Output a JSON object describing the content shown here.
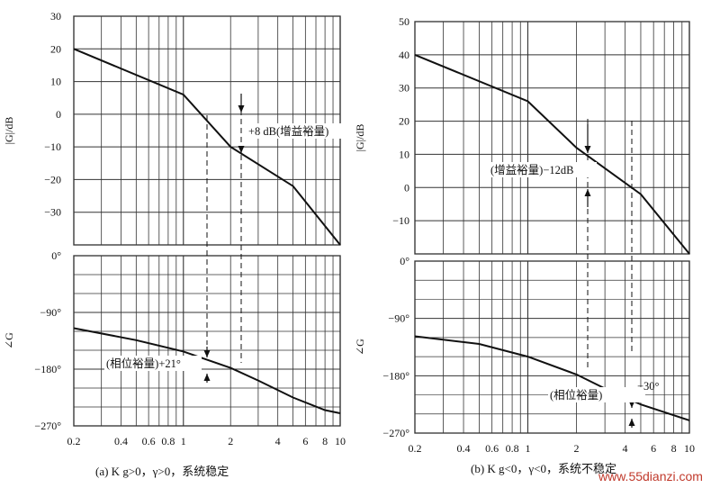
{
  "figures": [
    {
      "caption": "(a)  K g>0，γ>0，系统稳定",
      "magnitude_ylabel": "|G|/dB",
      "phase_ylabel": "∠G",
      "magnitude_ticks": [
        "30",
        "20",
        "10",
        "0",
        "−10",
        "−20",
        "−30"
      ],
      "phase_ticks": [
        "0°",
        "−90°",
        "−180°",
        "−270°"
      ],
      "x_ticks": [
        "0.2",
        "0.4",
        "0.6",
        "0.8",
        "1",
        "2",
        "4",
        "6",
        "8",
        "10"
      ],
      "gain_margin_label": "+8 dB(增益裕量)",
      "phase_margin_label": "(相位裕量)+21°"
    },
    {
      "caption": "(b)  K g<0，γ<0，系统不稳定",
      "magnitude_ylabel": "|G|/dB",
      "phase_ylabel": "∠G",
      "magnitude_ticks": [
        "50",
        "40",
        "30",
        "20",
        "10",
        "0",
        "−10"
      ],
      "phase_ticks": [
        "0°",
        "−90°",
        "−180°",
        "−270°"
      ],
      "x_ticks": [
        "0.2",
        "0.4",
        "0.6",
        "0.8",
        "1",
        "2",
        "4",
        "6",
        "8",
        "10"
      ],
      "gain_margin_label": "(增益裕量)−12dB",
      "phase_margin_label": "(相位裕量)",
      "phase_margin_value": "−30°"
    }
  ],
  "watermark": "www.55dianzi.com",
  "chart_data": [
    {
      "type": "line",
      "title": "(a) Kg>0, γ>0, stable",
      "xscale": "log",
      "xlim": [
        0.2,
        10
      ],
      "series": [
        {
          "panel": "magnitude",
          "ylabel": "|G|/dB",
          "ylim": [
            -40,
            30
          ],
          "x": [
            0.2,
            1,
            2,
            5,
            10
          ],
          "y": [
            20,
            6,
            -10,
            -22,
            -40
          ]
        },
        {
          "panel": "phase",
          "ylabel": "∠G",
          "ylim": [
            -270,
            0
          ],
          "x": [
            0.2,
            0.5,
            1,
            2,
            3,
            5,
            8,
            10
          ],
          "y": [
            -115,
            -134,
            -152,
            -178,
            -198,
            -225,
            -245,
            -250
          ]
        }
      ],
      "annotations": [
        {
          "text": "+8 dB(增益裕量)",
          "x": 2.4,
          "panel": "magnitude"
        },
        {
          "text": "(相位裕量)+21°",
          "x": 1.4,
          "panel": "phase"
        }
      ]
    },
    {
      "type": "line",
      "title": "(b) Kg<0, γ<0, unstable",
      "xscale": "log",
      "xlim": [
        0.2,
        10
      ],
      "series": [
        {
          "panel": "magnitude",
          "ylabel": "|G|/dB",
          "ylim": [
            -20,
            50
          ],
          "x": [
            0.2,
            1,
            2,
            5,
            10
          ],
          "y": [
            40,
            26,
            12,
            -2,
            -20
          ]
        },
        {
          "panel": "phase",
          "ylabel": "∠G",
          "ylim": [
            -270,
            0
          ],
          "x": [
            0.2,
            0.5,
            1,
            2,
            3,
            5,
            10
          ],
          "y": [
            -118,
            -130,
            -150,
            -178,
            -200,
            -225,
            -250
          ]
        }
      ],
      "annotations": [
        {
          "text": "(增益裕量)−12dB",
          "x": 2.4,
          "panel": "magnitude"
        },
        {
          "text": "(相位裕量) −30°",
          "x": 4.5,
          "panel": "phase"
        }
      ]
    }
  ]
}
